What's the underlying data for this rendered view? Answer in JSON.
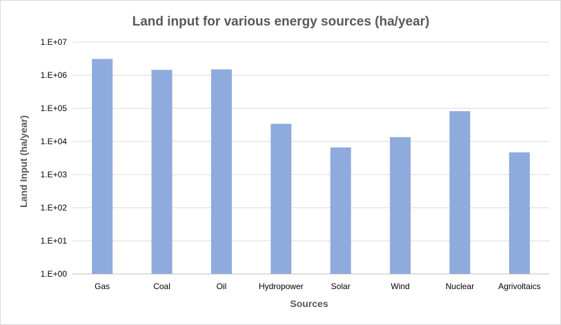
{
  "chart_data": {
    "type": "bar",
    "title": "Land input for various energy sources (ha/year)",
    "xlabel": "Sources",
    "ylabel": "Land Input (ha/year)",
    "yscale": "log",
    "ylim": [
      1,
      10000000
    ],
    "yticks": [
      1,
      10,
      100,
      1000,
      10000,
      100000,
      1000000,
      10000000
    ],
    "ytick_labels": [
      "1.E+00",
      "1.E+01",
      "1.E+02",
      "1.E+03",
      "1.E+04",
      "1.E+05",
      "1.E+06",
      "1.E+07"
    ],
    "grid": true,
    "legend": "none",
    "bar_color": "#8faadc",
    "categories": [
      "Gas",
      "Coal",
      "Oil",
      "Hydropower",
      "Solar",
      "Wind",
      "Nuclear",
      "Agrivoltaics"
    ],
    "values": [
      3100000,
      1450000,
      1500000,
      34000,
      6600,
      13500,
      82000,
      4700
    ]
  }
}
